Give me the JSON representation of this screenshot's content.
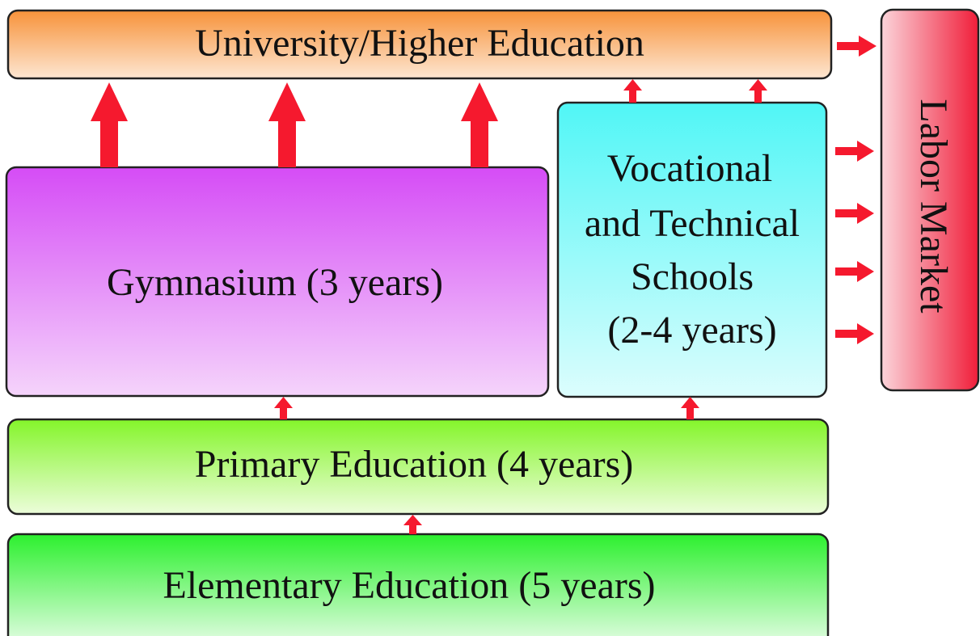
{
  "nodes": [
    {
      "label": "University/Higher Education"
    },
    {
      "label": "Labor Market"
    },
    {
      "label": "Gymnasium (3 years)"
    },
    {
      "lines": [
        "Vocational",
        "and Technical",
        "Schools",
        "(2-4 years)"
      ]
    },
    {
      "label": "Primary Education (4 years)"
    },
    {
      "label": "Elementary Education (5 years)"
    }
  ]
}
